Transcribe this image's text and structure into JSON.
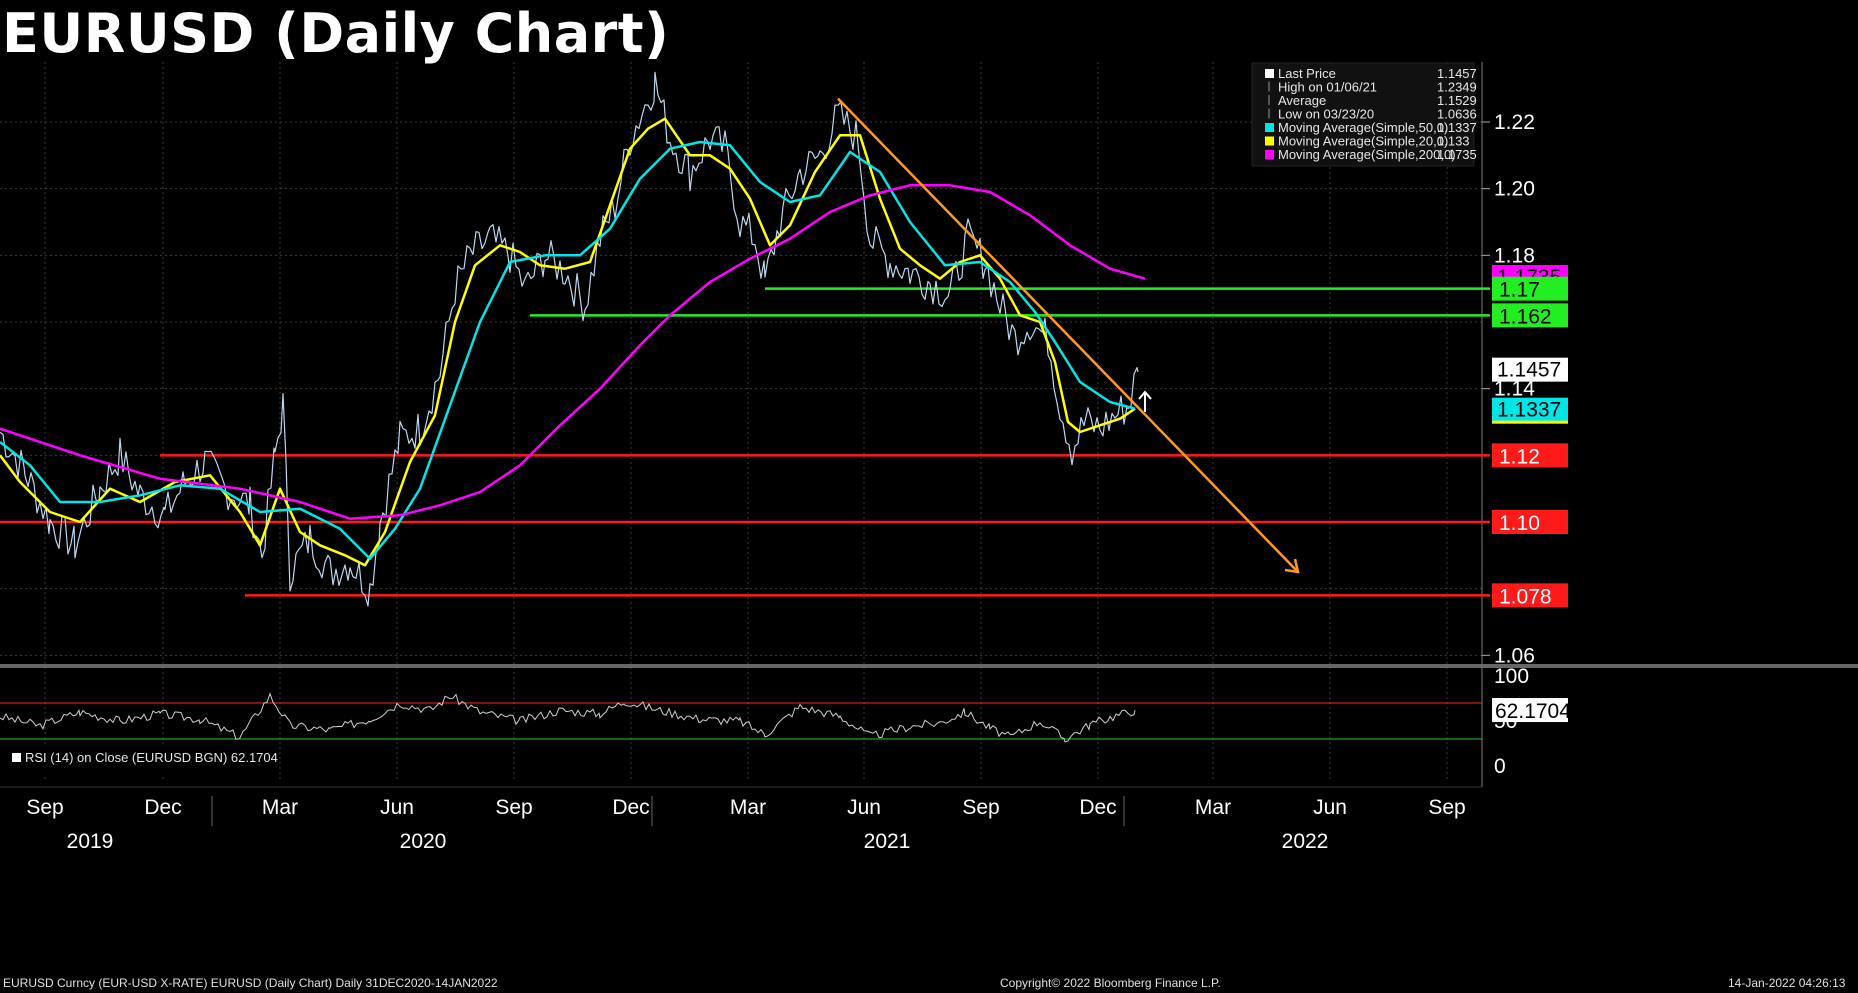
{
  "chart_data": {
    "type": "line",
    "title": "EURUSD (Daily Chart)",
    "yticks": [
      "1.22",
      "1.20",
      "1.18",
      "1.14",
      "1.06"
    ],
    "ylim": [
      1.058,
      1.238
    ],
    "months": [
      "Sep",
      "Dec",
      "Mar",
      "Jun",
      "Sep",
      "Dec",
      "Mar",
      "Jun",
      "Sep",
      "Dec",
      "Mar",
      "Jun",
      "Sep"
    ],
    "years": [
      "2019",
      "2020",
      "2021",
      "2022"
    ],
    "legend": [
      {
        "name": "Last Price",
        "value": "1.1457",
        "color": "#ffffff"
      },
      {
        "name": "High on 01/06/21",
        "value": "1.2349",
        "color": "#999999"
      },
      {
        "name": "Average",
        "value": "1.1529",
        "color": "#999999"
      },
      {
        "name": "Low on 03/23/20",
        "value": "1.0636",
        "color": "#999999"
      },
      {
        "name": "Moving Average(Simple,50,0)",
        "value": "1.1337",
        "color": "#00e5e5"
      },
      {
        "name": "Moving Average(Simple,20,0)",
        "value": "1.133",
        "color": "#ffff00"
      },
      {
        "name": "Moving Average(Simple,200,0)",
        "value": "1.1735",
        "color": "#ff00ff"
      }
    ],
    "series": [
      {
        "name": "Last Price",
        "color": "#bcd6f0",
        "values": [
          [
            0,
            1.127
          ],
          [
            25,
            1.115
          ],
          [
            50,
            1.1
          ],
          [
            75,
            1.093
          ],
          [
            100,
            1.11
          ],
          [
            120,
            1.12
          ],
          [
            140,
            1.108
          ],
          [
            165,
            1.102
          ],
          [
            185,
            1.112
          ],
          [
            205,
            1.118
          ],
          [
            225,
            1.11
          ],
          [
            250,
            1.105
          ],
          [
            262,
            1.09
          ],
          [
            275,
            1.12
          ],
          [
            283,
            1.135
          ],
          [
            290,
            1.085
          ],
          [
            310,
            1.095
          ],
          [
            330,
            1.085
          ],
          [
            350,
            1.088
          ],
          [
            370,
            1.08
          ],
          [
            380,
            1.1
          ],
          [
            400,
            1.125
          ],
          [
            420,
            1.128
          ],
          [
            440,
            1.145
          ],
          [
            455,
            1.17
          ],
          [
            470,
            1.18
          ],
          [
            490,
            1.185
          ],
          [
            510,
            1.18
          ],
          [
            525,
            1.17
          ],
          [
            545,
            1.18
          ],
          [
            565,
            1.175
          ],
          [
            585,
            1.165
          ],
          [
            600,
            1.185
          ],
          [
            615,
            1.195
          ],
          [
            630,
            1.215
          ],
          [
            645,
            1.225
          ],
          [
            655,
            1.232
          ],
          [
            670,
            1.215
          ],
          [
            690,
            1.205
          ],
          [
            710,
            1.215
          ],
          [
            725,
            1.212
          ],
          [
            740,
            1.19
          ],
          [
            755,
            1.185
          ],
          [
            765,
            1.172
          ],
          [
            780,
            1.19
          ],
          [
            800,
            1.205
          ],
          [
            820,
            1.21
          ],
          [
            838,
            1.222
          ],
          [
            858,
            1.215
          ],
          [
            870,
            1.185
          ],
          [
            890,
            1.178
          ],
          [
            910,
            1.175
          ],
          [
            930,
            1.172
          ],
          [
            950,
            1.168
          ],
          [
            968,
            1.185
          ],
          [
            985,
            1.178
          ],
          [
            1000,
            1.165
          ],
          [
            1015,
            1.155
          ],
          [
            1030,
            1.16
          ],
          [
            1048,
            1.155
          ],
          [
            1060,
            1.135
          ],
          [
            1072,
            1.122
          ],
          [
            1085,
            1.13
          ],
          [
            1100,
            1.128
          ],
          [
            1115,
            1.132
          ],
          [
            1128,
            1.135
          ],
          [
            1138,
            1.145
          ]
        ]
      },
      {
        "name": "Moving Average(Simple,20,0)",
        "color": "#ffff00",
        "values": [
          [
            0,
            1.12
          ],
          [
            20,
            1.112
          ],
          [
            50,
            1.103
          ],
          [
            80,
            1.1
          ],
          [
            110,
            1.11
          ],
          [
            140,
            1.106
          ],
          [
            175,
            1.112
          ],
          [
            210,
            1.114
          ],
          [
            240,
            1.103
          ],
          [
            260,
            1.093
          ],
          [
            280,
            1.11
          ],
          [
            300,
            1.097
          ],
          [
            320,
            1.093
          ],
          [
            345,
            1.09
          ],
          [
            365,
            1.087
          ],
          [
            385,
            1.097
          ],
          [
            410,
            1.118
          ],
          [
            435,
            1.132
          ],
          [
            455,
            1.16
          ],
          [
            475,
            1.177
          ],
          [
            500,
            1.183
          ],
          [
            520,
            1.181
          ],
          [
            540,
            1.177
          ],
          [
            565,
            1.176
          ],
          [
            590,
            1.178
          ],
          [
            610,
            1.195
          ],
          [
            630,
            1.212
          ],
          [
            648,
            1.218
          ],
          [
            665,
            1.221
          ],
          [
            690,
            1.21
          ],
          [
            710,
            1.21
          ],
          [
            730,
            1.206
          ],
          [
            750,
            1.197
          ],
          [
            770,
            1.183
          ],
          [
            790,
            1.189
          ],
          [
            815,
            1.205
          ],
          [
            840,
            1.216
          ],
          [
            860,
            1.216
          ],
          [
            880,
            1.197
          ],
          [
            900,
            1.182
          ],
          [
            920,
            1.177
          ],
          [
            940,
            1.173
          ],
          [
            960,
            1.178
          ],
          [
            980,
            1.18
          ],
          [
            1000,
            1.173
          ],
          [
            1020,
            1.162
          ],
          [
            1040,
            1.16
          ],
          [
            1055,
            1.148
          ],
          [
            1068,
            1.13
          ],
          [
            1080,
            1.127
          ],
          [
            1100,
            1.129
          ],
          [
            1120,
            1.131
          ],
          [
            1135,
            1.134
          ]
        ]
      },
      {
        "name": "Moving Average(Simple,50,0)",
        "color": "#00e5e5",
        "values": [
          [
            0,
            1.124
          ],
          [
            30,
            1.117
          ],
          [
            60,
            1.106
          ],
          [
            100,
            1.106
          ],
          [
            140,
            1.108
          ],
          [
            180,
            1.111
          ],
          [
            220,
            1.11
          ],
          [
            260,
            1.103
          ],
          [
            300,
            1.104
          ],
          [
            340,
            1.098
          ],
          [
            370,
            1.089
          ],
          [
            395,
            1.098
          ],
          [
            420,
            1.11
          ],
          [
            450,
            1.135
          ],
          [
            480,
            1.16
          ],
          [
            510,
            1.178
          ],
          [
            545,
            1.18
          ],
          [
            580,
            1.18
          ],
          [
            610,
            1.188
          ],
          [
            640,
            1.203
          ],
          [
            670,
            1.212
          ],
          [
            700,
            1.214
          ],
          [
            730,
            1.213
          ],
          [
            760,
            1.202
          ],
          [
            790,
            1.196
          ],
          [
            820,
            1.198
          ],
          [
            850,
            1.211
          ],
          [
            880,
            1.205
          ],
          [
            910,
            1.19
          ],
          [
            945,
            1.177
          ],
          [
            980,
            1.178
          ],
          [
            1010,
            1.172
          ],
          [
            1035,
            1.163
          ],
          [
            1055,
            1.154
          ],
          [
            1080,
            1.142
          ],
          [
            1110,
            1.136
          ],
          [
            1135,
            1.134
          ]
        ]
      },
      {
        "name": "Moving Average(Simple,200,0)",
        "color": "#ff00ff",
        "values": [
          [
            0,
            1.128
          ],
          [
            80,
            1.12
          ],
          [
            160,
            1.113
          ],
          [
            240,
            1.11
          ],
          [
            300,
            1.106
          ],
          [
            350,
            1.101
          ],
          [
            400,
            1.102
          ],
          [
            440,
            1.105
          ],
          [
            480,
            1.109
          ],
          [
            520,
            1.117
          ],
          [
            560,
            1.129
          ],
          [
            600,
            1.14
          ],
          [
            640,
            1.153
          ],
          [
            670,
            1.162
          ],
          [
            710,
            1.172
          ],
          [
            750,
            1.179
          ],
          [
            790,
            1.185
          ],
          [
            830,
            1.193
          ],
          [
            870,
            1.198
          ],
          [
            910,
            1.201
          ],
          [
            950,
            1.201
          ],
          [
            990,
            1.199
          ],
          [
            1030,
            1.192
          ],
          [
            1070,
            1.183
          ],
          [
            1110,
            1.176
          ],
          [
            1145,
            1.173
          ]
        ]
      }
    ],
    "hlines": [
      {
        "label": "1.17",
        "value": 1.17,
        "color": "#22ee22",
        "x0": 765
      },
      {
        "label": "1.162",
        "value": 1.162,
        "color": "#22ee22",
        "x0": 530
      },
      {
        "label": "1.12",
        "value": 1.12,
        "color": "#ff1a1a",
        "x0": 160
      },
      {
        "label": "1.10",
        "value": 1.1,
        "color": "#ff1a1a",
        "x0": 0
      },
      {
        "label": "1.078",
        "value": 1.078,
        "color": "#ff1a1a",
        "x0": 245
      }
    ],
    "trendline": {
      "color": "#ff9922",
      "from": [
        838,
        1.227
      ],
      "to": [
        1298,
        1.085
      ]
    },
    "value_tags": [
      {
        "label": "1.1457",
        "value": 1.1457,
        "bg": "#ffffff",
        "fg": "#000000"
      },
      {
        "label": "1.1337",
        "value": 1.1337,
        "bg": "#00e5e5",
        "fg": "#000000"
      },
      {
        "label": "1.1735",
        "value": 1.1735,
        "bg": "#ff00ff",
        "fg": "#000000"
      }
    ],
    "rsi": {
      "label": "RSI (14)  on Close (EURUSD BGN) 62.1704",
      "last": "62.1704",
      "yticks": [
        "100",
        "50",
        "0"
      ],
      "overbought": 70,
      "oversold": 30,
      "values": [
        [
          0,
          55
        ],
        [
          40,
          45
        ],
        [
          80,
          60
        ],
        [
          120,
          50
        ],
        [
          160,
          58
        ],
        [
          200,
          52
        ],
        [
          240,
          32
        ],
        [
          270,
          78
        ],
        [
          290,
          45
        ],
        [
          330,
          40
        ],
        [
          370,
          52
        ],
        [
          400,
          70
        ],
        [
          430,
          62
        ],
        [
          450,
          78
        ],
        [
          480,
          60
        ],
        [
          520,
          50
        ],
        [
          560,
          62
        ],
        [
          600,
          58
        ],
        [
          625,
          72
        ],
        [
          660,
          62
        ],
        [
          700,
          52
        ],
        [
          740,
          50
        ],
        [
          765,
          35
        ],
        [
          800,
          66
        ],
        [
          840,
          55
        ],
        [
          870,
          33
        ],
        [
          910,
          44
        ],
        [
          940,
          48
        ],
        [
          965,
          60
        ],
        [
          990,
          42
        ],
        [
          1010,
          32
        ],
        [
          1040,
          50
        ],
        [
          1065,
          30
        ],
        [
          1090,
          46
        ],
        [
          1110,
          54
        ],
        [
          1135,
          62
        ]
      ]
    }
  },
  "footer": {
    "left": "EURUSD Curncy (EUR-USD X-RATE) EURUSD (Daily Chart)  Daily 31DEC2020-14JAN2022",
    "center": "Copyright© 2022 Bloomberg Finance L.P.",
    "right": "14-Jan-2022 04:26:13"
  }
}
